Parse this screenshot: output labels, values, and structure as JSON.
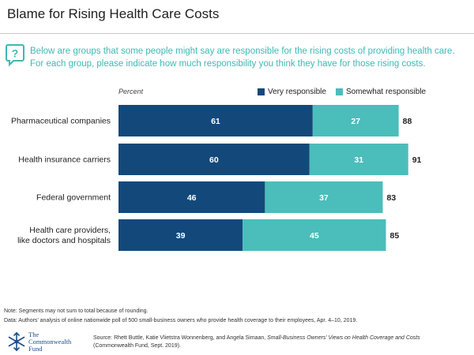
{
  "title": "Blame for Rising Health Care Costs",
  "question": {
    "line1": "Below are groups that some people might say are responsible  for the rising costs of providing health care.",
    "line2": "For each group, please indicate how much responsibility you think they have for those rising costs."
  },
  "colors": {
    "very": "#13497a",
    "somewhat": "#4bbdbb",
    "teal_text": "#3fb8b4"
  },
  "chart_data": {
    "type": "bar",
    "orientation": "horizontal",
    "stacked": true,
    "unit_label": "Percent",
    "categories": [
      [
        "Pharmaceutical companies"
      ],
      [
        "Health insurance carriers"
      ],
      [
        "Federal government"
      ],
      [
        "Health care providers,",
        "like doctors and hospitals"
      ]
    ],
    "series": [
      {
        "name": "Very responsible",
        "values": [
          61,
          60,
          46,
          39
        ]
      },
      {
        "name": "Somewhat responsible",
        "values": [
          27,
          31,
          37,
          45
        ]
      }
    ],
    "totals": [
      88,
      91,
      83,
      85
    ],
    "xlim": [
      0,
      100
    ],
    "grid": false,
    "legend_position": "top-right"
  },
  "footnotes": {
    "note": "Note: Segments may not sum to total because of rounding.",
    "data": "Data: Authors’ analysis of online nationwide poll of 500 small-business owners who provide health coverage to their employees, Apr. 4–10, 2019."
  },
  "source": {
    "prefix": "Source: Rhett Buttle, Katie Vlietstra Wonnenberg, and Angela Simaan, ",
    "italic": "Small-Business Owners’ Views on Health Coverage and Costs",
    "line2": "(Commonwealth Fund, Sept. 2019)."
  },
  "logo": {
    "line1": "The",
    "line2": "Commonwealth",
    "line3": "Fund"
  }
}
